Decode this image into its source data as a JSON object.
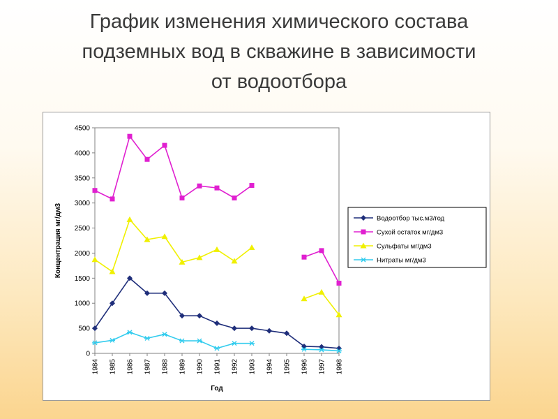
{
  "slide": {
    "title_lines": [
      "График изменения химического состава",
      "подземных вод в скважине в зависимости",
      "от водоотбора"
    ]
  },
  "chart_data": {
    "type": "line",
    "title": "",
    "xlabel": "Год",
    "ylabel": "Концентрация мг/дм3",
    "ylim": [
      0,
      4500
    ],
    "yticks": [
      0,
      500,
      1000,
      1500,
      2000,
      2500,
      3000,
      3500,
      4000,
      4500
    ],
    "categories": [
      "1984",
      "1985",
      "1986",
      "1987",
      "1988",
      "1989",
      "1990",
      "1991",
      "1992",
      "1993",
      "1994",
      "1995",
      "1996",
      "1997",
      "1998"
    ],
    "grid": false,
    "legend_position": "right",
    "series": [
      {
        "name": "Водоотбор тыс.м3/год",
        "color": "#1f2e7a",
        "marker": "diamond",
        "values": [
          500,
          1000,
          1500,
          1200,
          1200,
          750,
          750,
          600,
          500,
          500,
          450,
          400,
          140,
          130,
          100
        ]
      },
      {
        "name": "Сухой остаток мг/дм3",
        "color": "#e020d0",
        "marker": "square",
        "values": [
          3250,
          3080,
          4330,
          3870,
          4150,
          3100,
          3340,
          3300,
          3100,
          3350,
          null,
          null,
          1920,
          2050,
          1400
        ]
      },
      {
        "name": "Сульфаты мг/дм3",
        "color": "#f0f000",
        "marker": "triangle",
        "values": [
          1870,
          1630,
          2670,
          2270,
          2330,
          1820,
          1910,
          2070,
          1840,
          2110,
          null,
          null,
          1090,
          1220,
          770
        ]
      },
      {
        "name": "Нитраты мг/дм3",
        "color": "#33ccee",
        "marker": "asterisk",
        "values": [
          210,
          260,
          420,
          300,
          380,
          250,
          250,
          100,
          200,
          200,
          null,
          null,
          80,
          70,
          50
        ]
      }
    ]
  }
}
